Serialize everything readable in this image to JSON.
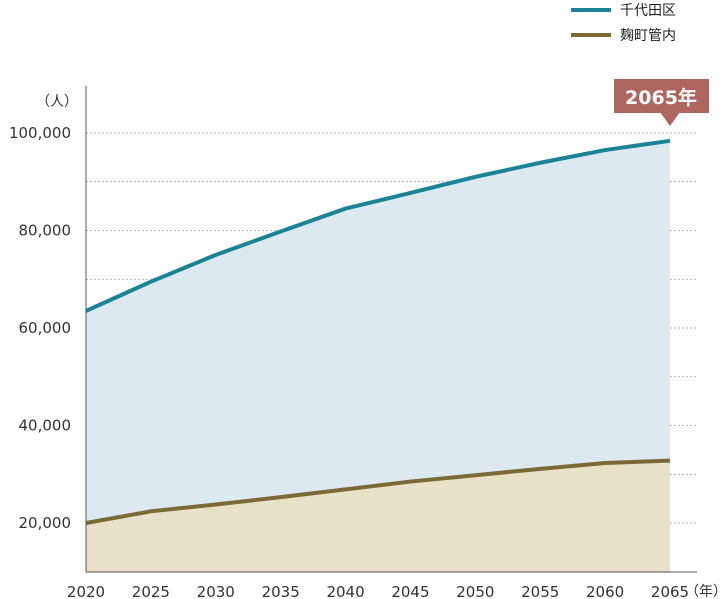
{
  "chart_data": {
    "type": "area",
    "x": [
      2020,
      2025,
      2030,
      2035,
      2040,
      2045,
      2050,
      2055,
      2060,
      2065
    ],
    "xtick_labels": [
      "2020",
      "2025",
      "2030",
      "2035",
      "2040",
      "2045",
      "2050",
      "2055",
      "2060",
      "2065"
    ],
    "ytick_values": [
      20000,
      40000,
      60000,
      80000,
      100000
    ],
    "ytick_labels": [
      "20,000",
      "40,000",
      "60,000",
      "80,000",
      "100,000"
    ],
    "ylim": [
      10000,
      105000
    ],
    "xunit": "（年）",
    "yunit": "（人）",
    "grid": "horizontal-dotted",
    "legend_position": "top-right",
    "series": [
      {
        "name": "千代田区",
        "color": "#1a8496",
        "fill": "#dde9f0",
        "values": [
          63500,
          69500,
          75000,
          79800,
          84500,
          87700,
          91000,
          93900,
          96500,
          98400
        ]
      },
      {
        "name": "麹町管内",
        "color": "#7c6a36",
        "fill": "#e9e1c7",
        "values": [
          20000,
          22400,
          23800,
          25300,
          26900,
          28500,
          29800,
          31100,
          32300,
          32800
        ]
      }
    ],
    "annotation": {
      "text": "2065年",
      "x": 2065,
      "color": "#b06660"
    }
  }
}
